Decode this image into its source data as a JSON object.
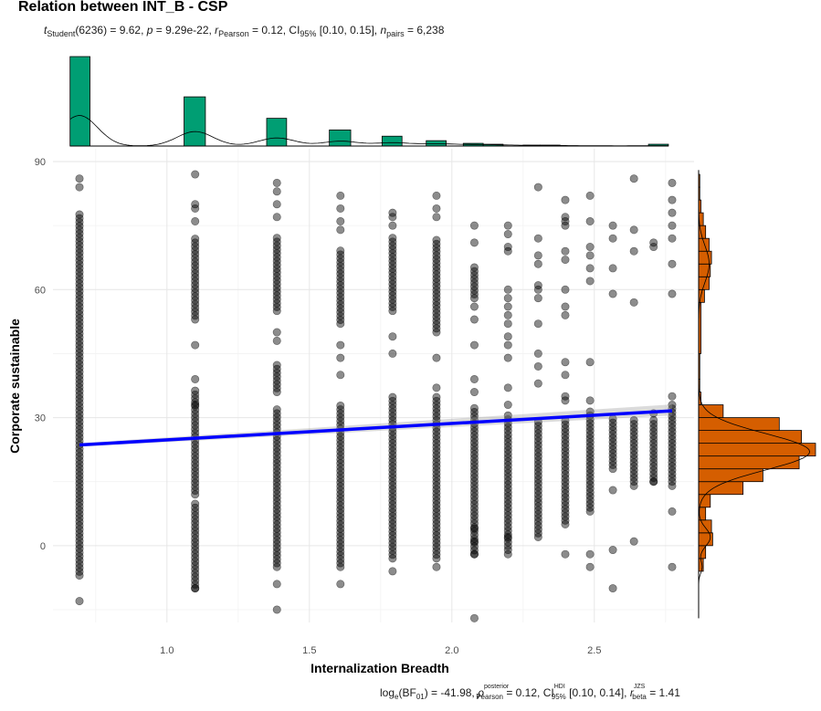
{
  "chart_data": {
    "type": "scatter",
    "title": "Relation between INT_B - CSP",
    "subtitle": {
      "t_stat": "t",
      "t_sub": "Student",
      "t_rest": "(6236) = 9.62, ",
      "p_sym": "p",
      "p_rest": " = 9.29e-22, ",
      "r_sym": "r",
      "r_sub": "Pearson",
      "r_rest": " = 0.12, CI",
      "ci_sub": "95%",
      "ci_rest": " [0.10, 0.15], ",
      "n_sym": "n",
      "n_sub": "pairs",
      "n_rest": " = 6,238"
    },
    "xlabel": "Internalization Breadth",
    "ylabel": "Corporate sustainable",
    "xlim": [
      0.6,
      2.85
    ],
    "ylim": [
      -18,
      93
    ],
    "x_ticks": [
      1.0,
      1.5,
      2.0,
      2.5
    ],
    "x_tick_labels": [
      "1.0",
      "1.5",
      "2.0",
      "2.5"
    ],
    "y_ticks": [
      0,
      30,
      60,
      90
    ],
    "y_tick_labels": [
      "0",
      "30",
      "60",
      "90"
    ],
    "grid": true,
    "regression_line": {
      "x_start": 0.693,
      "y_start": 23.6,
      "x_end": 2.773,
      "y_end": 31.6,
      "color": "#0000ff"
    },
    "point_color": "#000000",
    "point_opacity": 0.45,
    "columns": [
      {
        "x": 0.693,
        "dense_ranges": [
          [
            -7,
            78
          ]
        ],
        "extra_points": [
          86,
          84,
          -13
        ]
      },
      {
        "x": 1.099,
        "dense_ranges": [
          [
            -10,
            10
          ],
          [
            12,
            37
          ],
          [
            53,
            72
          ]
        ],
        "extra_points": [
          87,
          80,
          79,
          76,
          39,
          33,
          47,
          -10
        ]
      },
      {
        "x": 1.386,
        "dense_ranges": [
          [
            -5,
            32
          ],
          [
            36,
            43
          ],
          [
            55,
            73
          ]
        ],
        "extra_points": [
          85,
          83,
          80,
          77,
          50,
          48,
          -9,
          -15
        ]
      },
      {
        "x": 1.609,
        "dense_ranges": [
          [
            -5,
            33
          ],
          [
            52,
            70
          ]
        ],
        "extra_points": [
          82,
          79,
          76,
          74,
          47,
          44,
          40,
          -9
        ]
      },
      {
        "x": 1.792,
        "dense_ranges": [
          [
            -3,
            35
          ],
          [
            55,
            73
          ]
        ],
        "extra_points": [
          78,
          77,
          75,
          49,
          45,
          -6
        ]
      },
      {
        "x": 1.946,
        "dense_ranges": [
          [
            -3,
            35
          ],
          [
            50,
            72
          ]
        ],
        "extra_points": [
          82,
          79,
          77,
          44,
          37,
          -5
        ]
      },
      {
        "x": 2.079,
        "dense_ranges": [
          [
            -2,
            33
          ],
          [
            58,
            66
          ]
        ],
        "extra_points": [
          75,
          71,
          56,
          53,
          47,
          39,
          36,
          4,
          1,
          -2,
          -17
        ]
      },
      {
        "x": 2.197,
        "dense_ranges": [
          [
            -1,
            31
          ]
        ],
        "extra_points": [
          75,
          73,
          70,
          69,
          60,
          58,
          56,
          54,
          52,
          49,
          47,
          44,
          37,
          33,
          2,
          -2
        ]
      },
      {
        "x": 2.303,
        "dense_ranges": [
          [
            2,
            29
          ]
        ],
        "extra_points": [
          84,
          72,
          68,
          66,
          61,
          60,
          58,
          52,
          45,
          42,
          38
        ]
      },
      {
        "x": 2.398,
        "dense_ranges": [
          [
            5,
            30
          ]
        ],
        "extra_points": [
          81,
          77,
          76,
          75,
          69,
          67,
          60,
          56,
          54,
          43,
          40,
          35,
          34,
          -2
        ]
      },
      {
        "x": 2.485,
        "dense_ranges": [
          [
            8,
            32
          ]
        ],
        "extra_points": [
          82,
          76,
          70,
          68,
          65,
          62,
          43,
          34,
          -2,
          -5
        ]
      },
      {
        "x": 2.565,
        "dense_ranges": [
          [
            18,
            30
          ]
        ],
        "extra_points": [
          75,
          72,
          65,
          59,
          13,
          -1,
          -10
        ]
      },
      {
        "x": 2.639,
        "dense_ranges": [
          [
            15,
            30
          ]
        ],
        "extra_points": [
          86,
          74,
          69,
          57,
          14,
          1
        ]
      },
      {
        "x": 2.708,
        "dense_ranges": [
          [
            15,
            30
          ]
        ],
        "extra_points": [
          71,
          70,
          31,
          15
        ]
      },
      {
        "x": 2.773,
        "dense_ranges": [
          [
            15,
            33
          ]
        ],
        "extra_points": [
          85,
          81,
          78,
          75,
          72,
          66,
          59,
          35,
          14,
          8,
          -5
        ]
      }
    ],
    "top_histogram": {
      "color": "#009e73",
      "bins": [
        {
          "x_start": 0.66,
          "x_end": 0.73,
          "count": 100
        },
        {
          "x_start": 1.06,
          "x_end": 1.135,
          "count": 55
        },
        {
          "x_start": 1.35,
          "x_end": 1.42,
          "count": 31
        },
        {
          "x_start": 1.57,
          "x_end": 1.645,
          "count": 18
        },
        {
          "x_start": 1.755,
          "x_end": 1.825,
          "count": 11
        },
        {
          "x_start": 1.91,
          "x_end": 1.98,
          "count": 6
        },
        {
          "x_start": 2.04,
          "x_end": 2.11,
          "count": 3
        },
        {
          "x_start": 2.11,
          "x_end": 2.18,
          "count": 2
        },
        {
          "x_start": 2.25,
          "x_end": 2.31,
          "count": 1
        },
        {
          "x_start": 2.31,
          "x_end": 2.38,
          "count": 1
        },
        {
          "x_start": 2.69,
          "x_end": 2.76,
          "count": 2
        }
      ],
      "ymax": 100
    },
    "right_histogram": {
      "color": "#d55e00",
      "bins": [
        {
          "y_start": -6,
          "y_end": -3,
          "count": 4
        },
        {
          "y_start": -3,
          "y_end": 0,
          "count": 6
        },
        {
          "y_start": 0,
          "y_end": 3,
          "count": 12
        },
        {
          "y_start": 3,
          "y_end": 6,
          "count": 11
        },
        {
          "y_start": 6,
          "y_end": 9,
          "count": 6
        },
        {
          "y_start": 9,
          "y_end": 12,
          "count": 10
        },
        {
          "y_start": 12,
          "y_end": 15,
          "count": 38
        },
        {
          "y_start": 15,
          "y_end": 18,
          "count": 55
        },
        {
          "y_start": 18,
          "y_end": 21,
          "count": 86
        },
        {
          "y_start": 21,
          "y_end": 24,
          "count": 100
        },
        {
          "y_start": 24,
          "y_end": 27,
          "count": 88
        },
        {
          "y_start": 27,
          "y_end": 30,
          "count": 69
        },
        {
          "y_start": 30,
          "y_end": 33,
          "count": 21
        },
        {
          "y_start": 33,
          "y_end": 36,
          "count": 2
        },
        {
          "y_start": 36,
          "y_end": 39,
          "count": 1
        },
        {
          "y_start": 39,
          "y_end": 45,
          "count": 1
        },
        {
          "y_start": 45,
          "y_end": 57,
          "count": 2
        },
        {
          "y_start": 57,
          "y_end": 60,
          "count": 5
        },
        {
          "y_start": 60,
          "y_end": 63,
          "count": 9
        },
        {
          "y_start": 63,
          "y_end": 66,
          "count": 10
        },
        {
          "y_start": 66,
          "y_end": 69,
          "count": 11
        },
        {
          "y_start": 69,
          "y_end": 72,
          "count": 9
        },
        {
          "y_start": 72,
          "y_end": 75,
          "count": 6
        },
        {
          "y_start": 75,
          "y_end": 78,
          "count": 4
        },
        {
          "y_start": 78,
          "y_end": 81,
          "count": 2
        },
        {
          "y_start": 81,
          "y_end": 84,
          "count": 1
        },
        {
          "y_start": 84,
          "y_end": 87,
          "count": 1
        }
      ],
      "xmax": 100
    },
    "caption": {
      "log": "log",
      "log_sub": "e",
      "bf": "(BF",
      "bf_sub": "01",
      "bf_rest": ") = -41.98, ",
      "rho": "ρ",
      "rho_sup": "posterior",
      "rho_sub": "Pearson",
      "rho_rest": " = 0.12, CI",
      "ci_sup": "HDI",
      "ci_sub": "95%",
      "ci_rest": " [0.10, 0.14], ",
      "r_sym": "r",
      "r_sup": "JZS",
      "r_sub": "beta",
      "r_rest": " = 1.41"
    }
  }
}
